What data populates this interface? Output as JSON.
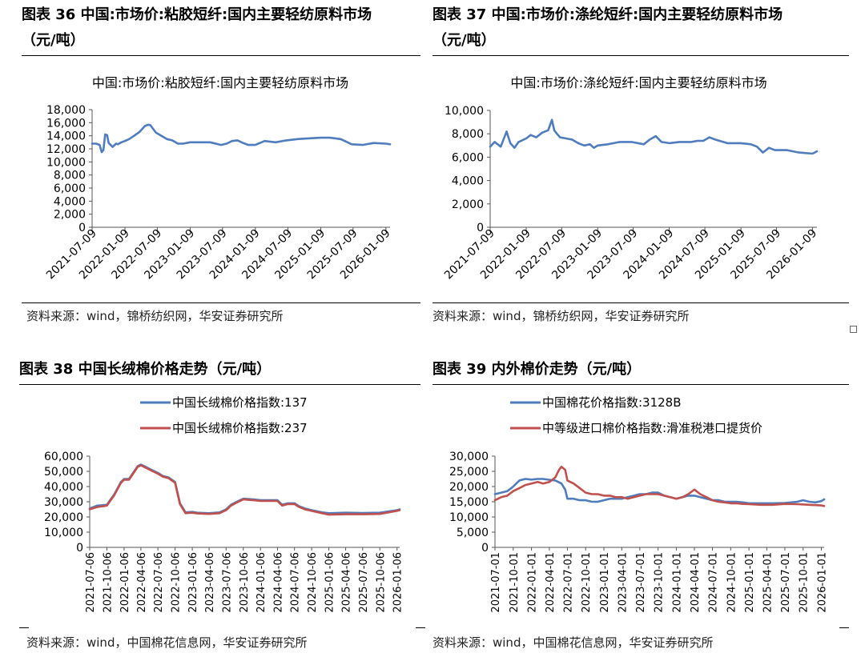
{
  "figures": [
    {
      "heading_line1": "图表  36  中国:市场价:粘胶短纤:国内主要轻纺原料市场",
      "heading_line2": "（元/吨）",
      "source": "资料来源：wind，锦桥纺织网，华安证券研究所"
    },
    {
      "heading_line1": "图表  37  中国:市场价:涤纶短纤:国内主要轻纺原料市场",
      "heading_line2": "（元/吨）",
      "source": "资料来源：wind，锦桥纺织网，华安证券研究所"
    },
    {
      "heading_line1": "图表 38 中国长绒棉价格走势（元/吨）",
      "source": "资料来源：wind，中国棉花信息网，华安证券研究所"
    },
    {
      "heading_line1": "图表 39 内外棉价走势（元/吨）",
      "source": "资料来源：wind，中国棉花信息网，华安证券研究所"
    }
  ],
  "colors": {
    "blue": "#4f7cbd",
    "red": "#c0504d",
    "axis": "#555555"
  },
  "chart_data": [
    {
      "type": "line",
      "title": "中国:市场价:粘胶短纤:国内主要轻纺原料市场",
      "xlabel": "",
      "ylabel": "",
      "ylim": [
        0,
        18000
      ],
      "yticks": [
        "0",
        "2,000",
        "4,000",
        "6,000",
        "8,000",
        "10,000",
        "12,000",
        "14,000",
        "16,000",
        "18,000"
      ],
      "xticks": [
        "2021-07-09",
        "2022-01-09",
        "2022-07-09",
        "2023-01-09",
        "2023-07-09",
        "2024-01-09",
        "2024-07-09",
        "2025-01-09",
        "2025-07-09",
        "2026-01-09"
      ],
      "x_range": [
        "2021-07-09",
        "2026-02-01"
      ],
      "legend": "none",
      "series": [
        {
          "color": "#4f7cbd",
          "x": [
            "2021-07-09",
            "2021-08-01",
            "2021-08-20",
            "2021-09-01",
            "2021-09-10",
            "2021-09-20",
            "2021-10-01",
            "2021-10-10",
            "2021-11-01",
            "2021-11-20",
            "2021-12-01",
            "2021-12-20",
            "2022-01-09",
            "2022-02-01",
            "2022-03-01",
            "2022-04-01",
            "2022-05-01",
            "2022-05-20",
            "2022-06-01",
            "2022-07-01",
            "2022-08-01",
            "2022-09-01",
            "2022-10-01",
            "2022-11-01",
            "2022-12-01",
            "2023-01-09",
            "2023-03-01",
            "2023-05-01",
            "2023-07-01",
            "2023-08-01",
            "2023-09-01",
            "2023-10-01",
            "2023-11-01",
            "2023-12-01",
            "2024-01-09",
            "2024-03-01",
            "2024-05-01",
            "2024-07-01",
            "2024-09-01",
            "2024-11-01",
            "2025-01-09",
            "2025-03-01",
            "2025-05-01",
            "2025-07-01",
            "2025-09-01",
            "2025-11-01",
            "2026-01-09",
            "2026-02-01"
          ],
          "y": [
            12800,
            12800,
            12600,
            11500,
            11800,
            14200,
            14100,
            12900,
            12300,
            12800,
            12700,
            13000,
            13200,
            13500,
            14000,
            14600,
            15500,
            15700,
            15600,
            14500,
            14000,
            13500,
            13300,
            12800,
            12800,
            13000,
            13000,
            13000,
            12600,
            12800,
            13200,
            13300,
            12900,
            12600,
            12600,
            13200,
            13000,
            13300,
            13500,
            13600,
            13700,
            13700,
            13500,
            12700,
            12600,
            12900,
            12800,
            12700
          ]
        }
      ]
    },
    {
      "type": "line",
      "title": "中国:市场价:涤纶短纤:国内主要轻纺原料市场",
      "xlabel": "",
      "ylabel": "",
      "ylim": [
        0,
        10000
      ],
      "yticks": [
        "0",
        "2,000",
        "4,000",
        "6,000",
        "8,000",
        "10,000"
      ],
      "xticks": [
        "2021-07-09",
        "2022-01-09",
        "2022-07-09",
        "2023-01-09",
        "2023-07-09",
        "2024-01-09",
        "2024-07-09",
        "2025-01-09",
        "2025-07-09",
        "2026-01-09"
      ],
      "x_range": [
        "2021-07-09",
        "2026-02-01"
      ],
      "legend": "none",
      "series": [
        {
          "color": "#4f7cbd",
          "x": [
            "2021-07-09",
            "2021-08-01",
            "2021-09-01",
            "2021-10-01",
            "2021-10-20",
            "2021-11-10",
            "2021-12-01",
            "2022-01-09",
            "2022-02-01",
            "2022-03-01",
            "2022-04-01",
            "2022-05-01",
            "2022-05-20",
            "2022-06-01",
            "2022-06-15",
            "2022-07-01",
            "2022-08-01",
            "2022-09-01",
            "2022-10-01",
            "2022-11-01",
            "2022-12-01",
            "2022-12-20",
            "2023-01-09",
            "2023-03-01",
            "2023-05-01",
            "2023-07-01",
            "2023-09-01",
            "2023-10-01",
            "2023-11-01",
            "2023-12-01",
            "2024-01-09",
            "2024-03-01",
            "2024-05-01",
            "2024-06-01",
            "2024-07-01",
            "2024-08-01",
            "2024-09-01",
            "2024-11-01",
            "2025-01-09",
            "2025-03-01",
            "2025-04-01",
            "2025-05-01",
            "2025-06-01",
            "2025-07-01",
            "2025-09-01",
            "2025-11-01",
            "2026-01-09",
            "2026-02-01"
          ],
          "y": [
            6900,
            7300,
            6900,
            8200,
            7200,
            6800,
            7300,
            7600,
            7900,
            7700,
            8100,
            8300,
            9200,
            8300,
            8000,
            7700,
            7600,
            7500,
            7200,
            7000,
            7100,
            6800,
            7000,
            7100,
            7300,
            7300,
            7100,
            7500,
            7800,
            7300,
            7200,
            7300,
            7300,
            7400,
            7400,
            7700,
            7500,
            7200,
            7200,
            7100,
            6900,
            6400,
            6800,
            6600,
            6600,
            6400,
            6300,
            6500
          ]
        }
      ]
    },
    {
      "type": "line",
      "title": "",
      "xlabel": "",
      "ylabel": "",
      "ylim": [
        0,
        60000
      ],
      "yticks": [
        "0",
        "10,000",
        "20,000",
        "30,000",
        "40,000",
        "50,000",
        "60,000"
      ],
      "xticks": [
        "2021-07-06",
        "2021-10-06",
        "2022-01-06",
        "2022-04-06",
        "2022-07-06",
        "2022-10-06",
        "2023-01-06",
        "2023-04-06",
        "2023-07-06",
        "2023-10-06",
        "2024-01-06",
        "2024-04-06",
        "2024-07-06",
        "2024-10-06",
        "2025-01-06",
        "2025-04-06",
        "2025-07-06",
        "2025-10-06",
        "2026-01-06"
      ],
      "x_range": [
        "2021-07-06",
        "2026-01-20"
      ],
      "legend": "top-center",
      "series": [
        {
          "name": "中国长绒棉价格指数:137",
          "color": "#4f7cbd",
          "x": [
            "2021-07-06",
            "2021-08-15",
            "2021-10-06",
            "2021-11-15",
            "2021-12-20",
            "2022-01-06",
            "2022-02-01",
            "2022-03-01",
            "2022-03-20",
            "2022-04-06",
            "2022-05-01",
            "2022-06-01",
            "2022-07-06",
            "2022-08-01",
            "2022-09-01",
            "2022-10-06",
            "2022-11-01",
            "2022-12-01",
            "2022-12-20",
            "2023-01-06",
            "2023-02-01",
            "2023-04-06",
            "2023-06-01",
            "2023-07-06",
            "2023-08-01",
            "2023-09-01",
            "2023-10-06",
            "2023-12-01",
            "2024-01-06",
            "2024-03-01",
            "2024-04-06",
            "2024-05-01",
            "2024-06-01",
            "2024-07-06",
            "2024-08-01",
            "2024-09-01",
            "2024-10-06",
            "2024-12-01",
            "2025-01-06",
            "2025-04-06",
            "2025-07-06",
            "2025-10-06",
            "2026-01-06",
            "2026-01-20"
          ],
          "y": [
            25500,
            27500,
            28000,
            35000,
            43000,
            45000,
            45000,
            50000,
            53500,
            54500,
            53000,
            51000,
            49000,
            47000,
            46000,
            43000,
            29000,
            23000,
            23200,
            23300,
            22800,
            22500,
            23000,
            25000,
            28000,
            30000,
            32000,
            31500,
            31000,
            31000,
            31000,
            28000,
            29000,
            29000,
            27000,
            25500,
            24500,
            23000,
            22500,
            22800,
            22600,
            22800,
            24500,
            25000
          ]
        },
        {
          "name": "中国长绒棉价格指数:237",
          "color": "#c0504d",
          "x": [
            "2021-07-06",
            "2021-08-15",
            "2021-10-06",
            "2021-11-15",
            "2021-12-20",
            "2022-01-06",
            "2022-02-01",
            "2022-03-01",
            "2022-03-20",
            "2022-04-06",
            "2022-05-01",
            "2022-06-01",
            "2022-07-06",
            "2022-08-01",
            "2022-09-01",
            "2022-10-06",
            "2022-11-01",
            "2022-12-01",
            "2022-12-20",
            "2023-01-06",
            "2023-02-01",
            "2023-04-06",
            "2023-06-01",
            "2023-07-06",
            "2023-08-01",
            "2023-09-01",
            "2023-10-06",
            "2023-12-01",
            "2024-01-06",
            "2024-03-01",
            "2024-04-06",
            "2024-05-01",
            "2024-06-01",
            "2024-07-06",
            "2024-08-01",
            "2024-09-01",
            "2024-10-06",
            "2024-12-01",
            "2025-01-06",
            "2025-04-06",
            "2025-07-06",
            "2025-10-06",
            "2026-01-06",
            "2026-01-20"
          ],
          "y": [
            25000,
            26500,
            27500,
            34500,
            42500,
            44500,
            44500,
            49500,
            53000,
            54000,
            52500,
            50500,
            48500,
            46500,
            45500,
            42500,
            28500,
            22500,
            22700,
            22800,
            22300,
            22000,
            22500,
            24500,
            27500,
            29500,
            31500,
            31000,
            30500,
            30500,
            30500,
            27500,
            28500,
            28500,
            26500,
            25000,
            24000,
            22500,
            21500,
            21800,
            21800,
            22000,
            24000,
            24500
          ]
        }
      ]
    },
    {
      "type": "line",
      "title": "",
      "xlabel": "",
      "ylabel": "",
      "ylim": [
        0,
        30000
      ],
      "yticks": [
        "0",
        "5,000",
        "10,000",
        "15,000",
        "20,000",
        "25,000",
        "30,000"
      ],
      "xticks": [
        "2021-07-01",
        "2021-10-01",
        "2022-01-01",
        "2022-04-01",
        "2022-07-01",
        "2022-10-01",
        "2023-01-01",
        "2023-04-01",
        "2023-07-01",
        "2023-10-01",
        "2024-01-01",
        "2024-04-01",
        "2024-07-01",
        "2024-10-01",
        "2025-01-01",
        "2025-04-01",
        "2025-07-01",
        "2025-10-01",
        "2026-01-01"
      ],
      "x_range": [
        "2021-07-01",
        "2026-01-15"
      ],
      "legend": "top-center",
      "series": [
        {
          "name": "中国棉花价格指数:3128B",
          "color": "#4f7cbd",
          "x": [
            "2021-07-01",
            "2021-08-01",
            "2021-09-01",
            "2021-10-01",
            "2021-11-01",
            "2021-12-01",
            "2022-01-01",
            "2022-02-01",
            "2022-03-01",
            "2022-04-01",
            "2022-05-01",
            "2022-06-01",
            "2022-06-20",
            "2022-07-01",
            "2022-08-01",
            "2022-09-01",
            "2022-10-01",
            "2022-11-01",
            "2022-12-01",
            "2023-01-01",
            "2023-02-01",
            "2023-03-01",
            "2023-04-01",
            "2023-05-01",
            "2023-06-01",
            "2023-07-01",
            "2023-08-01",
            "2023-09-01",
            "2023-10-01",
            "2023-11-01",
            "2023-12-01",
            "2024-01-01",
            "2024-02-01",
            "2024-03-01",
            "2024-04-01",
            "2024-05-01",
            "2024-06-01",
            "2024-07-01",
            "2024-08-01",
            "2024-09-01",
            "2024-10-01",
            "2024-11-01",
            "2024-12-01",
            "2025-01-01",
            "2025-03-01",
            "2025-05-01",
            "2025-07-01",
            "2025-09-01",
            "2025-10-01",
            "2025-11-01",
            "2025-12-01",
            "2026-01-01",
            "2026-01-15"
          ],
          "y": [
            17500,
            18000,
            18500,
            20000,
            22000,
            22500,
            22300,
            22500,
            22500,
            22200,
            22000,
            21000,
            19000,
            16000,
            16000,
            15500,
            15500,
            15000,
            15000,
            15500,
            16000,
            16000,
            16000,
            16500,
            17000,
            17500,
            17500,
            18000,
            18000,
            17000,
            16500,
            16000,
            16500,
            17000,
            17000,
            16500,
            16000,
            15500,
            15500,
            15000,
            15000,
            15000,
            14800,
            14500,
            14500,
            14500,
            14600,
            15000,
            15500,
            15000,
            14800,
            15200,
            15800
          ]
        },
        {
          "name": "中等级进口棉价格指数:滑准税港口提货价",
          "color": "#c0504d",
          "x": [
            "2021-07-01",
            "2021-08-01",
            "2021-09-01",
            "2021-10-01",
            "2021-11-01",
            "2021-12-01",
            "2022-01-01",
            "2022-02-01",
            "2022-03-01",
            "2022-04-01",
            "2022-05-01",
            "2022-05-20",
            "2022-06-01",
            "2022-06-20",
            "2022-07-01",
            "2022-08-01",
            "2022-09-01",
            "2022-10-01",
            "2022-11-01",
            "2022-12-01",
            "2023-01-01",
            "2023-02-01",
            "2023-03-01",
            "2023-04-01",
            "2023-05-01",
            "2023-06-01",
            "2023-07-01",
            "2023-08-01",
            "2023-09-01",
            "2023-10-01",
            "2023-11-01",
            "2023-12-01",
            "2024-01-01",
            "2024-02-01",
            "2024-03-01",
            "2024-04-01",
            "2024-05-01",
            "2024-06-01",
            "2024-07-01",
            "2024-08-01",
            "2024-09-01",
            "2024-10-01",
            "2024-11-01",
            "2024-12-01",
            "2025-01-01",
            "2025-03-01",
            "2025-05-01",
            "2025-07-01",
            "2025-09-01",
            "2025-11-01",
            "2026-01-01",
            "2026-01-15"
          ],
          "y": [
            15500,
            16500,
            17000,
            18500,
            19500,
            20500,
            21000,
            21500,
            21000,
            21500,
            23000,
            25500,
            26500,
            25500,
            22000,
            21000,
            19500,
            18000,
            17500,
            17500,
            17000,
            17000,
            16500,
            16500,
            16000,
            16500,
            17000,
            17500,
            17500,
            17500,
            17000,
            16500,
            16000,
            16500,
            17500,
            19000,
            17500,
            16500,
            15500,
            15000,
            14800,
            14500,
            14500,
            14300,
            14200,
            14000,
            14000,
            14300,
            14200,
            14000,
            13800,
            13600
          ]
        }
      ]
    }
  ]
}
